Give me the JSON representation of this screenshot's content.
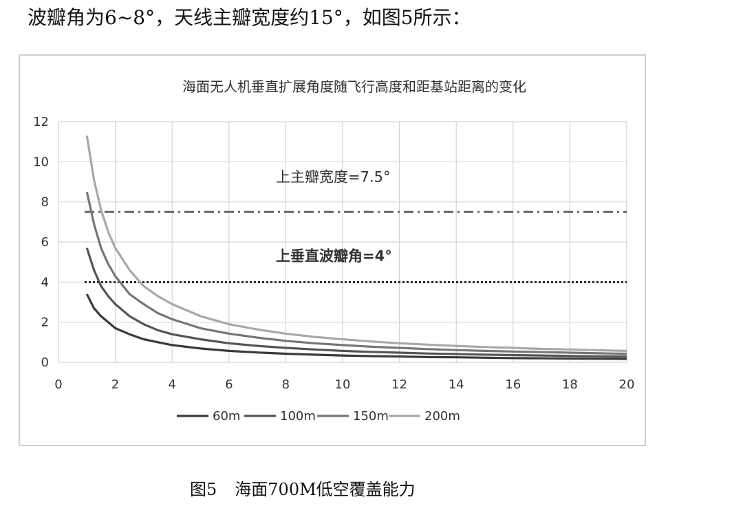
{
  "page": {
    "intro_text": "波瓣角为6~8°，天线主瓣宽度约15°，如图5所示：",
    "caption_number": "图5",
    "caption_title": "海面700M低空覆盖能力"
  },
  "chart_data": {
    "type": "line",
    "title": "海面无人机垂直扩展角度随飞行高度和距基站距离的变化",
    "xlabel": "",
    "ylabel": "",
    "xlim": [
      0,
      20
    ],
    "ylim": [
      0,
      12
    ],
    "xticks": [
      0,
      2,
      4,
      6,
      8,
      10,
      12,
      14,
      16,
      18,
      20
    ],
    "yticks": [
      0,
      2,
      4,
      6,
      8,
      10,
      12
    ],
    "grid": true,
    "legend_position": "bottom",
    "x": [
      1,
      1.25,
      1.5,
      1.75,
      2,
      2.5,
      3,
      3.5,
      4,
      5,
      6,
      7,
      8,
      9,
      10,
      11,
      12,
      13,
      14,
      15,
      16,
      17,
      18,
      19,
      20
    ],
    "series": [
      {
        "name": "60m",
        "color": "#3a3a3a",
        "values": [
          3.4,
          2.7,
          2.3,
          2.0,
          1.7,
          1.4,
          1.15,
          1.0,
          0.86,
          0.69,
          0.57,
          0.49,
          0.43,
          0.38,
          0.34,
          0.31,
          0.29,
          0.26,
          0.25,
          0.23,
          0.21,
          0.2,
          0.19,
          0.18,
          0.17
        ]
      },
      {
        "name": "100m",
        "color": "#555555",
        "values": [
          5.7,
          4.6,
          3.8,
          3.3,
          2.9,
          2.3,
          1.9,
          1.6,
          1.4,
          1.15,
          0.95,
          0.82,
          0.72,
          0.64,
          0.57,
          0.52,
          0.48,
          0.44,
          0.41,
          0.38,
          0.36,
          0.34,
          0.32,
          0.3,
          0.29
        ]
      },
      {
        "name": "150m",
        "color": "#767676",
        "values": [
          8.5,
          6.9,
          5.7,
          4.9,
          4.3,
          3.4,
          2.9,
          2.45,
          2.15,
          1.7,
          1.43,
          1.23,
          1.07,
          0.95,
          0.86,
          0.78,
          0.72,
          0.66,
          0.61,
          0.57,
          0.54,
          0.51,
          0.48,
          0.45,
          0.43
        ]
      },
      {
        "name": "200m",
        "color": "#a8a8a8",
        "values": [
          11.3,
          9.1,
          7.6,
          6.5,
          5.7,
          4.6,
          3.8,
          3.3,
          2.9,
          2.3,
          1.9,
          1.64,
          1.43,
          1.27,
          1.15,
          1.04,
          0.95,
          0.88,
          0.82,
          0.76,
          0.72,
          0.67,
          0.64,
          0.6,
          0.57
        ]
      }
    ],
    "reference_lines": [
      {
        "y": 7.5,
        "label": "上主瓣宽度=7.5°",
        "style": "dashdot",
        "color": "#666666"
      },
      {
        "y": 4,
        "label": "上垂直波瓣角=4°",
        "style": "dotted",
        "color": "#222222"
      }
    ]
  }
}
